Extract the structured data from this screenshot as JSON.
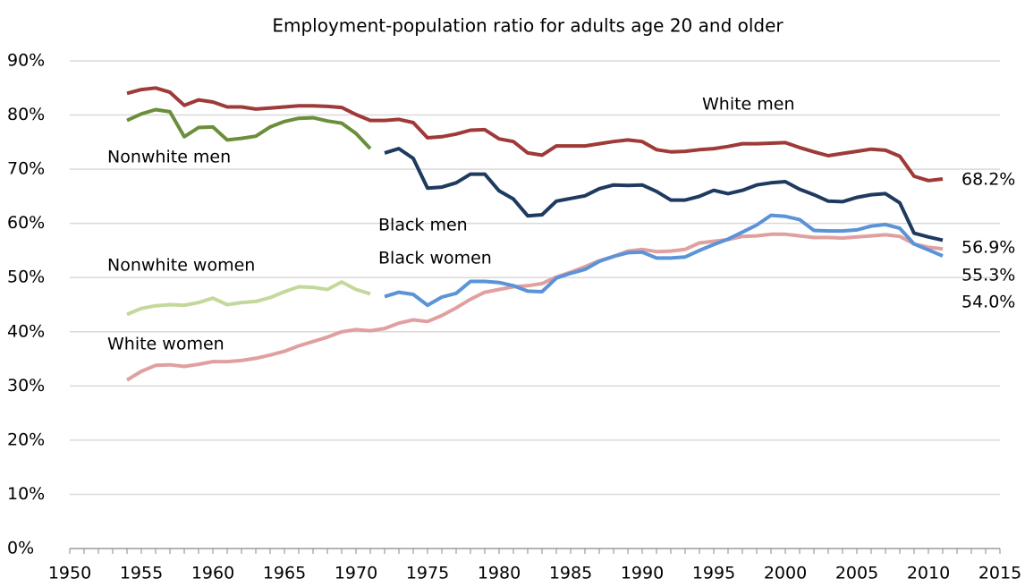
{
  "chart_data": {
    "type": "line",
    "title": "Employment-population ratio for adults age 20 and older",
    "x": [
      1954,
      1955,
      1956,
      1957,
      1958,
      1959,
      1960,
      1961,
      1962,
      1963,
      1964,
      1965,
      1966,
      1967,
      1968,
      1969,
      1970,
      1971,
      1972,
      1973,
      1974,
      1975,
      1976,
      1977,
      1978,
      1979,
      1980,
      1981,
      1982,
      1983,
      1984,
      1985,
      1986,
      1987,
      1988,
      1989,
      1990,
      1991,
      1992,
      1993,
      1994,
      1995,
      1996,
      1997,
      1998,
      1999,
      2000,
      2001,
      2002,
      2003,
      2004,
      2005,
      2006,
      2007,
      2008,
      2009,
      2010,
      2011
    ],
    "xlim": [
      1950,
      2015
    ],
    "xticks": [
      1950,
      1955,
      1960,
      1965,
      1970,
      1975,
      1980,
      1985,
      1990,
      1995,
      2000,
      2005,
      2010,
      2015
    ],
    "ylim": [
      0,
      90
    ],
    "yticks": [
      {
        "value": 0,
        "label": "0%"
      },
      {
        "value": 10,
        "label": "10%"
      },
      {
        "value": 20,
        "label": "20%"
      },
      {
        "value": 30,
        "label": "30%"
      },
      {
        "value": 40,
        "label": "40%"
      },
      {
        "value": 50,
        "label": "50%"
      },
      {
        "value": 60,
        "label": "60%"
      },
      {
        "value": 70,
        "label": "70%"
      },
      {
        "value": 80,
        "label": "80%"
      },
      {
        "value": 90,
        "label": "90%"
      }
    ],
    "grid": true,
    "series": [
      {
        "name": "White men",
        "color": "#9e3a38",
        "values": [
          84.0,
          84.7,
          85.0,
          84.2,
          81.8,
          82.8,
          82.4,
          81.5,
          81.5,
          81.1,
          81.3,
          81.5,
          81.7,
          81.7,
          81.6,
          81.4,
          80.1,
          79.0,
          79.0,
          79.2,
          78.6,
          75.8,
          76.0,
          76.5,
          77.2,
          77.3,
          75.6,
          75.1,
          73.0,
          72.6,
          74.3,
          74.3,
          74.3,
          74.7,
          75.1,
          75.4,
          75.1,
          73.6,
          73.2,
          73.3,
          73.6,
          73.8,
          74.2,
          74.7,
          74.7,
          74.8,
          74.9,
          74.0,
          73.2,
          72.5,
          72.9,
          73.3,
          73.7,
          73.5,
          72.4,
          68.7,
          67.9,
          68.2
        ],
        "value_labels": [
          null,
          null,
          null,
          null,
          null,
          null,
          null,
          null,
          null,
          null,
          null,
          null,
          null,
          null,
          null,
          null,
          null,
          null,
          null,
          null,
          null,
          null,
          null,
          null,
          null,
          null,
          null,
          null,
          null,
          null,
          null,
          null,
          null,
          null,
          null,
          null,
          null,
          null,
          null,
          null,
          null,
          null,
          null,
          null,
          null,
          null,
          null,
          null,
          null,
          null,
          null,
          null,
          null,
          null,
          null,
          null,
          null,
          "68.2%"
        ]
      },
      {
        "name": "Nonwhite men",
        "color": "#6b8e3a",
        "values": [
          79.0,
          80.2,
          81.0,
          80.6,
          76.0,
          77.7,
          77.8,
          75.4,
          75.7,
          76.1,
          77.8,
          78.8,
          79.4,
          79.5,
          78.9,
          78.5,
          76.6,
          73.8,
          null,
          null,
          null,
          null,
          null,
          null,
          null,
          null,
          null,
          null,
          null,
          null,
          null,
          null,
          null,
          null,
          null,
          null,
          null,
          null,
          null,
          null,
          null,
          null,
          null,
          null,
          null,
          null,
          null,
          null,
          null,
          null,
          null,
          null,
          null,
          null,
          null,
          null,
          null,
          null
        ]
      },
      {
        "name": "Black men",
        "color": "#1f3a5f",
        "values": [
          null,
          null,
          null,
          null,
          null,
          null,
          null,
          null,
          null,
          null,
          null,
          null,
          null,
          null,
          null,
          null,
          null,
          null,
          73.0,
          73.8,
          72.0,
          66.5,
          66.7,
          67.5,
          69.1,
          69.1,
          66.0,
          64.5,
          61.4,
          61.6,
          64.1,
          64.6,
          65.1,
          66.4,
          67.1,
          67.0,
          67.1,
          65.9,
          64.3,
          64.3,
          65.0,
          66.1,
          65.5,
          66.1,
          67.1,
          67.5,
          67.7,
          66.3,
          65.3,
          64.1,
          64.0,
          64.8,
          65.3,
          65.5,
          63.8,
          58.2,
          57.5,
          56.9
        ],
        "value_labels": [
          null,
          null,
          null,
          null,
          null,
          null,
          null,
          null,
          null,
          null,
          null,
          null,
          null,
          null,
          null,
          null,
          null,
          null,
          null,
          null,
          null,
          null,
          null,
          null,
          null,
          null,
          null,
          null,
          null,
          null,
          null,
          null,
          null,
          null,
          null,
          null,
          null,
          null,
          null,
          null,
          null,
          null,
          null,
          null,
          null,
          null,
          null,
          null,
          null,
          null,
          null,
          null,
          null,
          null,
          null,
          null,
          null,
          "56.9%"
        ]
      },
      {
        "name": "White women",
        "color": "#e0a0a0",
        "values": [
          31.1,
          32.7,
          33.8,
          33.9,
          33.6,
          34.0,
          34.5,
          34.5,
          34.7,
          35.1,
          35.7,
          36.4,
          37.4,
          38.2,
          39.0,
          40.0,
          40.4,
          40.2,
          40.6,
          41.6,
          42.2,
          41.9,
          43.0,
          44.4,
          46.0,
          47.3,
          47.8,
          48.3,
          48.5,
          48.9,
          50.1,
          51.0,
          52.0,
          53.1,
          53.9,
          54.9,
          55.2,
          54.8,
          54.9,
          55.2,
          56.4,
          56.7,
          57.0,
          57.6,
          57.7,
          58.0,
          58.0,
          57.7,
          57.4,
          57.4,
          57.3,
          57.5,
          57.7,
          57.9,
          57.6,
          56.2,
          55.6,
          55.3
        ],
        "value_labels": [
          null,
          null,
          null,
          null,
          null,
          null,
          null,
          null,
          null,
          null,
          null,
          null,
          null,
          null,
          null,
          null,
          null,
          null,
          null,
          null,
          null,
          null,
          null,
          null,
          null,
          null,
          null,
          null,
          null,
          null,
          null,
          null,
          null,
          null,
          null,
          null,
          null,
          null,
          null,
          null,
          null,
          null,
          null,
          null,
          null,
          null,
          null,
          null,
          null,
          null,
          null,
          null,
          null,
          null,
          null,
          null,
          null,
          "55.3%"
        ]
      },
      {
        "name": "Nonwhite women",
        "color": "#c3d99b",
        "values": [
          43.2,
          44.3,
          44.8,
          45.0,
          44.9,
          45.4,
          46.2,
          45.0,
          45.4,
          45.6,
          46.3,
          47.4,
          48.3,
          48.2,
          47.8,
          49.2,
          47.8,
          47.0,
          null,
          null,
          null,
          null,
          null,
          null,
          null,
          null,
          null,
          null,
          null,
          null,
          null,
          null,
          null,
          null,
          null,
          null,
          null,
          null,
          null,
          null,
          null,
          null,
          null,
          null,
          null,
          null,
          null,
          null,
          null,
          null,
          null,
          null,
          null,
          null,
          null,
          null,
          null,
          null
        ]
      },
      {
        "name": "Black women",
        "color": "#5b93d8",
        "values": [
          null,
          null,
          null,
          null,
          null,
          null,
          null,
          null,
          null,
          null,
          null,
          null,
          null,
          null,
          null,
          null,
          null,
          null,
          46.5,
          47.3,
          46.9,
          44.9,
          46.4,
          47.1,
          49.3,
          49.3,
          49.1,
          48.5,
          47.5,
          47.4,
          49.9,
          50.8,
          51.5,
          53.0,
          53.9,
          54.6,
          54.7,
          53.6,
          53.6,
          53.8,
          55.0,
          56.1,
          57.1,
          58.4,
          59.7,
          61.5,
          61.3,
          60.7,
          58.7,
          58.6,
          58.6,
          58.8,
          59.5,
          59.8,
          59.1,
          56.2,
          55.1,
          54.0
        ],
        "value_labels": [
          null,
          null,
          null,
          null,
          null,
          null,
          null,
          null,
          null,
          null,
          null,
          null,
          null,
          null,
          null,
          null,
          null,
          null,
          null,
          null,
          null,
          null,
          null,
          null,
          null,
          null,
          null,
          null,
          null,
          null,
          null,
          null,
          null,
          null,
          null,
          null,
          null,
          null,
          null,
          null,
          null,
          null,
          null,
          null,
          null,
          null,
          null,
          null,
          null,
          null,
          null,
          null,
          null,
          null,
          null,
          null,
          null,
          "54.0%"
        ]
      }
    ]
  }
}
